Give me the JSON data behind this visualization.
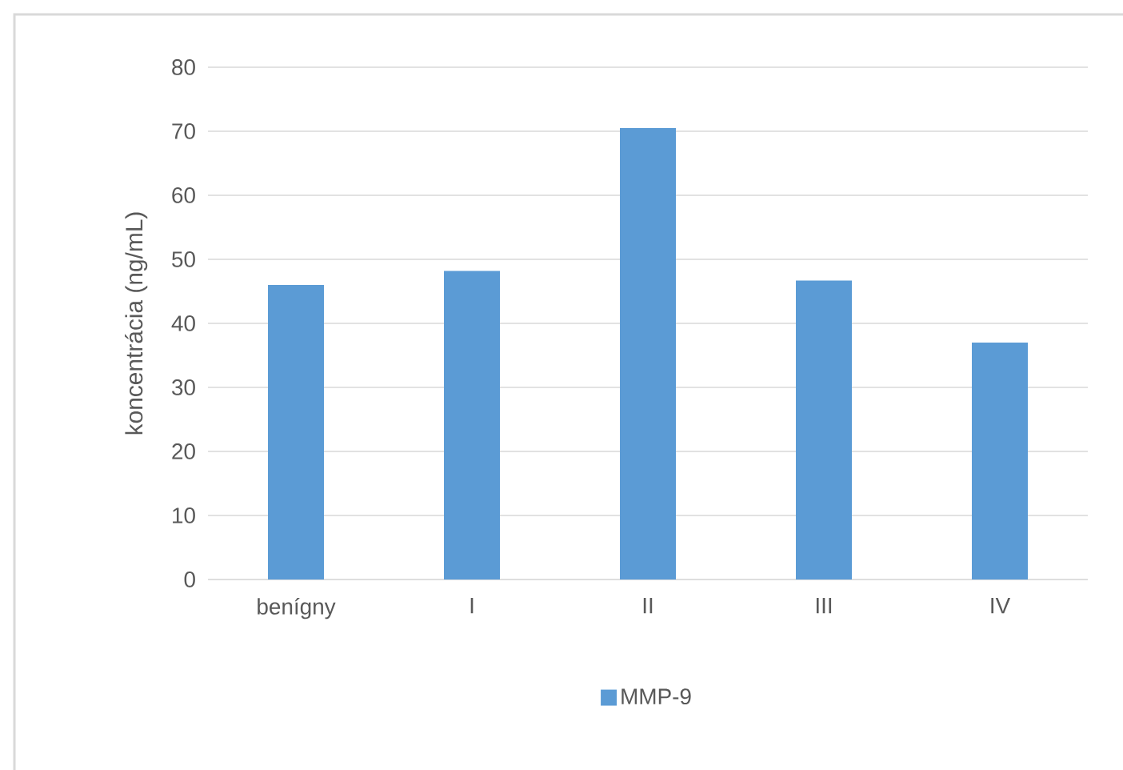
{
  "chart_data": {
    "type": "bar",
    "ylabel": "koncentrácia (ng/mL)",
    "categories": [
      "benígny",
      "I",
      "II",
      "III",
      "IV"
    ],
    "series": [
      {
        "name": "MMP-9",
        "color": "#5b9bd5",
        "values": [
          46,
          48.2,
          70.5,
          46.7,
          37
        ]
      }
    ],
    "ylim": [
      0,
      80
    ],
    "yticks": [
      0,
      10,
      20,
      30,
      40,
      50,
      60,
      70,
      80
    ],
    "grid": "y",
    "legend": "bottom"
  }
}
